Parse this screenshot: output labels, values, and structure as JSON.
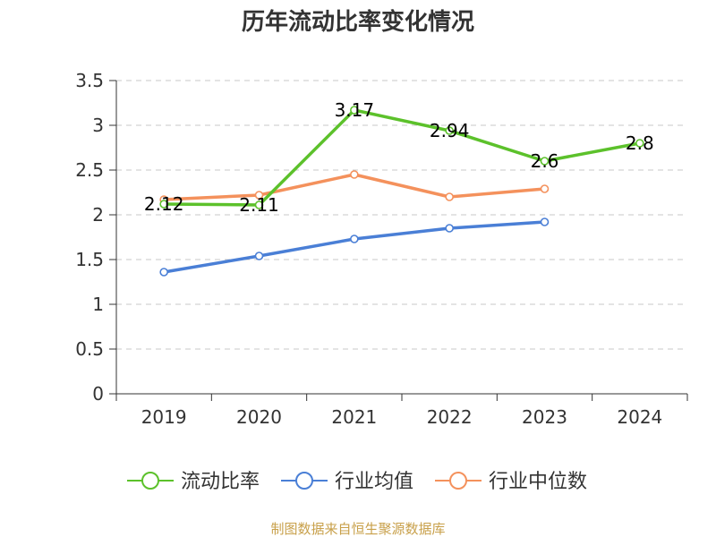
{
  "chart_data": {
    "type": "line",
    "title": "历年流动比率变化情况",
    "categories": [
      "2019",
      "2020",
      "2021",
      "2022",
      "2023",
      "2024"
    ],
    "ylim": [
      0,
      3.5
    ],
    "yticks": [
      0,
      0.5,
      1,
      1.5,
      2,
      2.5,
      3,
      3.5
    ],
    "ytick_labels": [
      "0",
      "0.5",
      "1",
      "1.5",
      "2",
      "2.5",
      "3",
      "3.5"
    ],
    "grid": true,
    "legend_position": "bottom",
    "series": [
      {
        "name": "流动比率",
        "color": "#5cc12b",
        "values": [
          2.12,
          2.11,
          3.17,
          2.94,
          2.6,
          2.8
        ],
        "labels": [
          "2.12",
          "2.11",
          "3.17",
          "2.94",
          "2.6",
          "2.8"
        ]
      },
      {
        "name": "行业均值",
        "color": "#4a7fd6",
        "values": [
          1.36,
          1.54,
          1.73,
          1.85,
          1.92,
          null
        ]
      },
      {
        "name": "行业中位数",
        "color": "#f4915c",
        "values": [
          2.17,
          2.22,
          2.45,
          2.2,
          2.29,
          null
        ]
      }
    ]
  },
  "source": "制图数据来自恒生聚源数据库"
}
